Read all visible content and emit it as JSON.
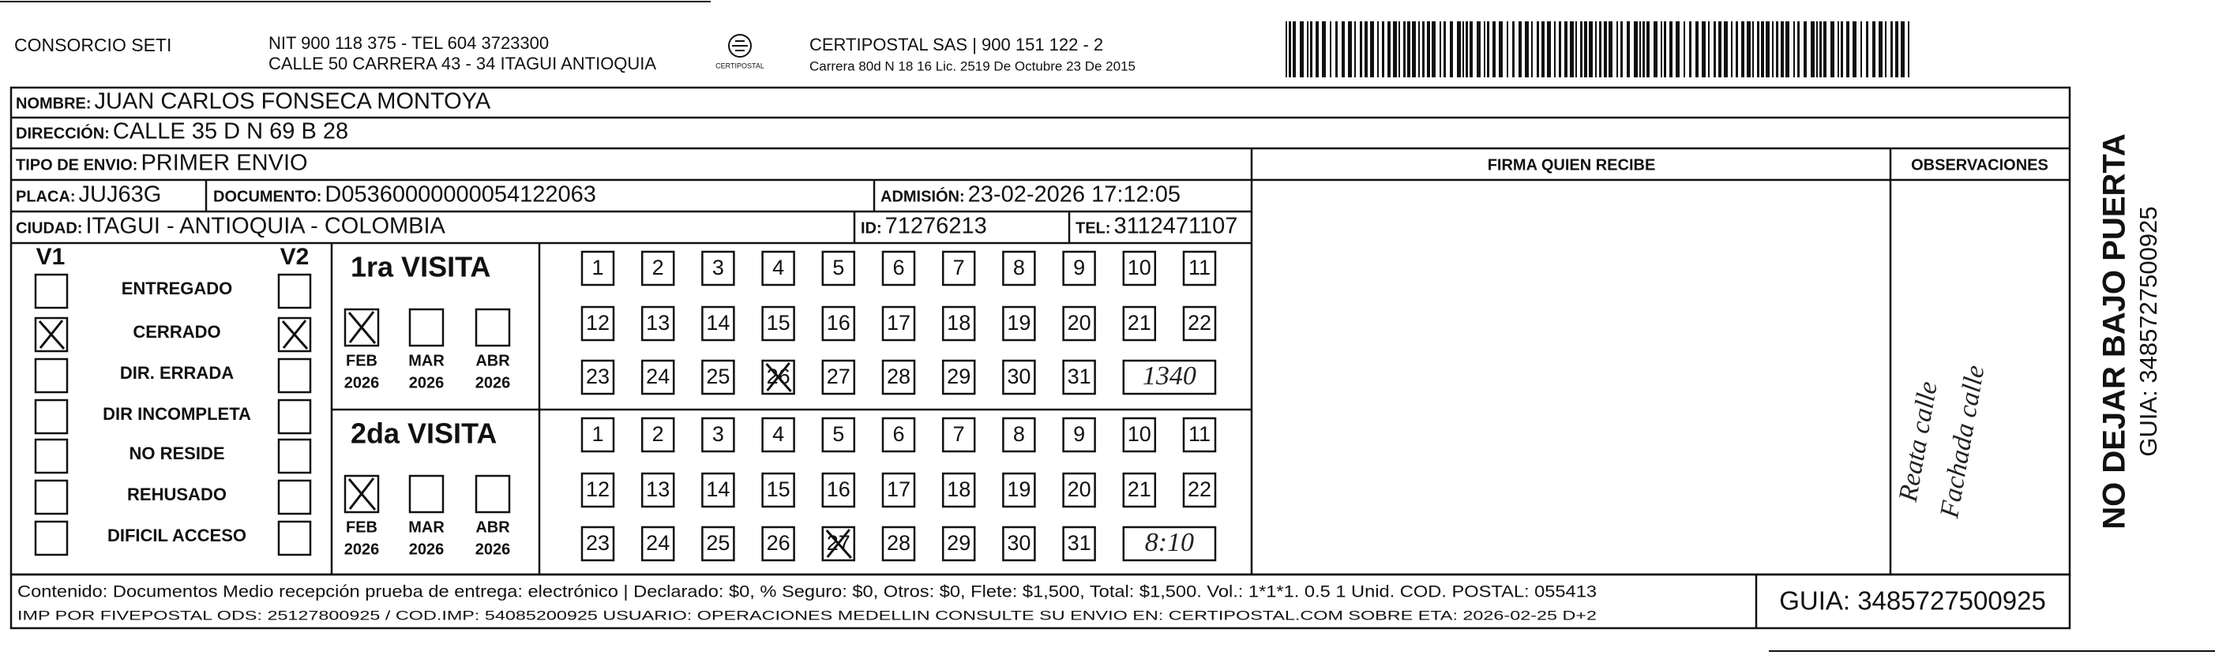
{
  "header": {
    "company": "CONSORCIO SETI",
    "nit_line1": "NIT 900 118 375 - TEL 604 3723300",
    "nit_line2": "CALLE 50 CARRERA 43 - 34 ITAGUI ANTIOQUIA",
    "logo_caption": "CERTIPOSTAL",
    "carrier_line1": "CERTIPOSTAL SAS | 900 151 122 - 2",
    "carrier_line2": "Carrera 80d N 18 16  Lic. 2519 De Octubre 23 De 2015"
  },
  "fields": {
    "nombre": {
      "label": "NOMBRE:",
      "value": "JUAN CARLOS FONSECA MONTOYA"
    },
    "direccion": {
      "label": "DIRECCIÓN:",
      "value": "CALLE 35 D N 69 B 28"
    },
    "tipo": {
      "label": "TIPO DE ENVIO:",
      "value": "PRIMER ENVIO"
    },
    "placa": {
      "label": "PLACA:",
      "value": "JUJ63G"
    },
    "documento": {
      "label": "DOCUMENTO:",
      "value": "D05360000000054122063"
    },
    "admision": {
      "label": "ADMISIÓN:",
      "value": "23-02-2026 17:12:05"
    },
    "ciudad": {
      "label": "CIUDAD:",
      "value": "ITAGUI - ANTIOQUIA - COLOMBIA"
    },
    "id": {
      "label": "ID:",
      "value": "71276213"
    },
    "tel": {
      "label": "TEL:",
      "value": "3112471107"
    }
  },
  "columns": {
    "firma": "FIRMA QUIEN RECIBE",
    "observaciones": "OBSERVACIONES"
  },
  "checklist": {
    "v1": "V1",
    "v2": "V2",
    "statuses": [
      {
        "label": "ENTREGADO",
        "v1": false,
        "v2": false
      },
      {
        "label": "CERRADO",
        "v1": true,
        "v2": true
      },
      {
        "label": "DIR. ERRADA",
        "v1": false,
        "v2": false
      },
      {
        "label": "DIR INCOMPLETA",
        "v1": false,
        "v2": false
      },
      {
        "label": "NO RESIDE",
        "v1": false,
        "v2": false
      },
      {
        "label": "REHUSADO",
        "v1": false,
        "v2": false
      },
      {
        "label": "DIFICIL ACCESO",
        "v1": false,
        "v2": false
      }
    ]
  },
  "visits": [
    {
      "title": "1ra VISITA",
      "months": [
        {
          "month": "FEB",
          "year": "2026"
        },
        {
          "month": "MAR",
          "year": "2026"
        },
        {
          "month": "ABR",
          "year": "2026"
        }
      ],
      "checked_month": "FEB",
      "crossed_day": "26",
      "note": "1340"
    },
    {
      "title": "2da VISITA",
      "months": [
        {
          "month": "FEB",
          "year": "2026"
        },
        {
          "month": "MAR",
          "year": "2026"
        },
        {
          "month": "ABR",
          "year": "2026"
        }
      ],
      "checked_month": "FEB",
      "crossed_day": "27",
      "note": "8:10"
    }
  ],
  "days": [
    "1",
    "2",
    "3",
    "4",
    "5",
    "6",
    "7",
    "8",
    "9",
    "10",
    "11",
    "12",
    "13",
    "14",
    "15",
    "16",
    "17",
    "18",
    "19",
    "20",
    "21",
    "22",
    "23",
    "24",
    "25",
    "26",
    "27",
    "28",
    "29",
    "30",
    "31"
  ],
  "observations": [
    "Reata calle",
    "Fachada calle"
  ],
  "side": {
    "notice": "NO DEJAR BAJO PUERTA",
    "guia": "GUIA: 3485727500925"
  },
  "footer": {
    "line1": "Contenido: Documentos Medio recepción prueba de entrega: electrónico | Declarado: $0, % Seguro: $0, Otros: $0, Flete: $1,500, Total: $1,500. Vol.: 1*1*1. 0.5  1 Unid. COD. POSTAL: 055413",
    "line2": "IMP POR FIVEPOSTAL ODS: 25127800925 / COD.IMP: 54085200925 USUARIO: OPERACIONES MEDELLIN CONSULTE SU ENVIO EN: CERTIPOSTAL.COM SOBRE ETA: 2026-02-25 D+2",
    "guia": "GUIA: 3485727500925"
  }
}
